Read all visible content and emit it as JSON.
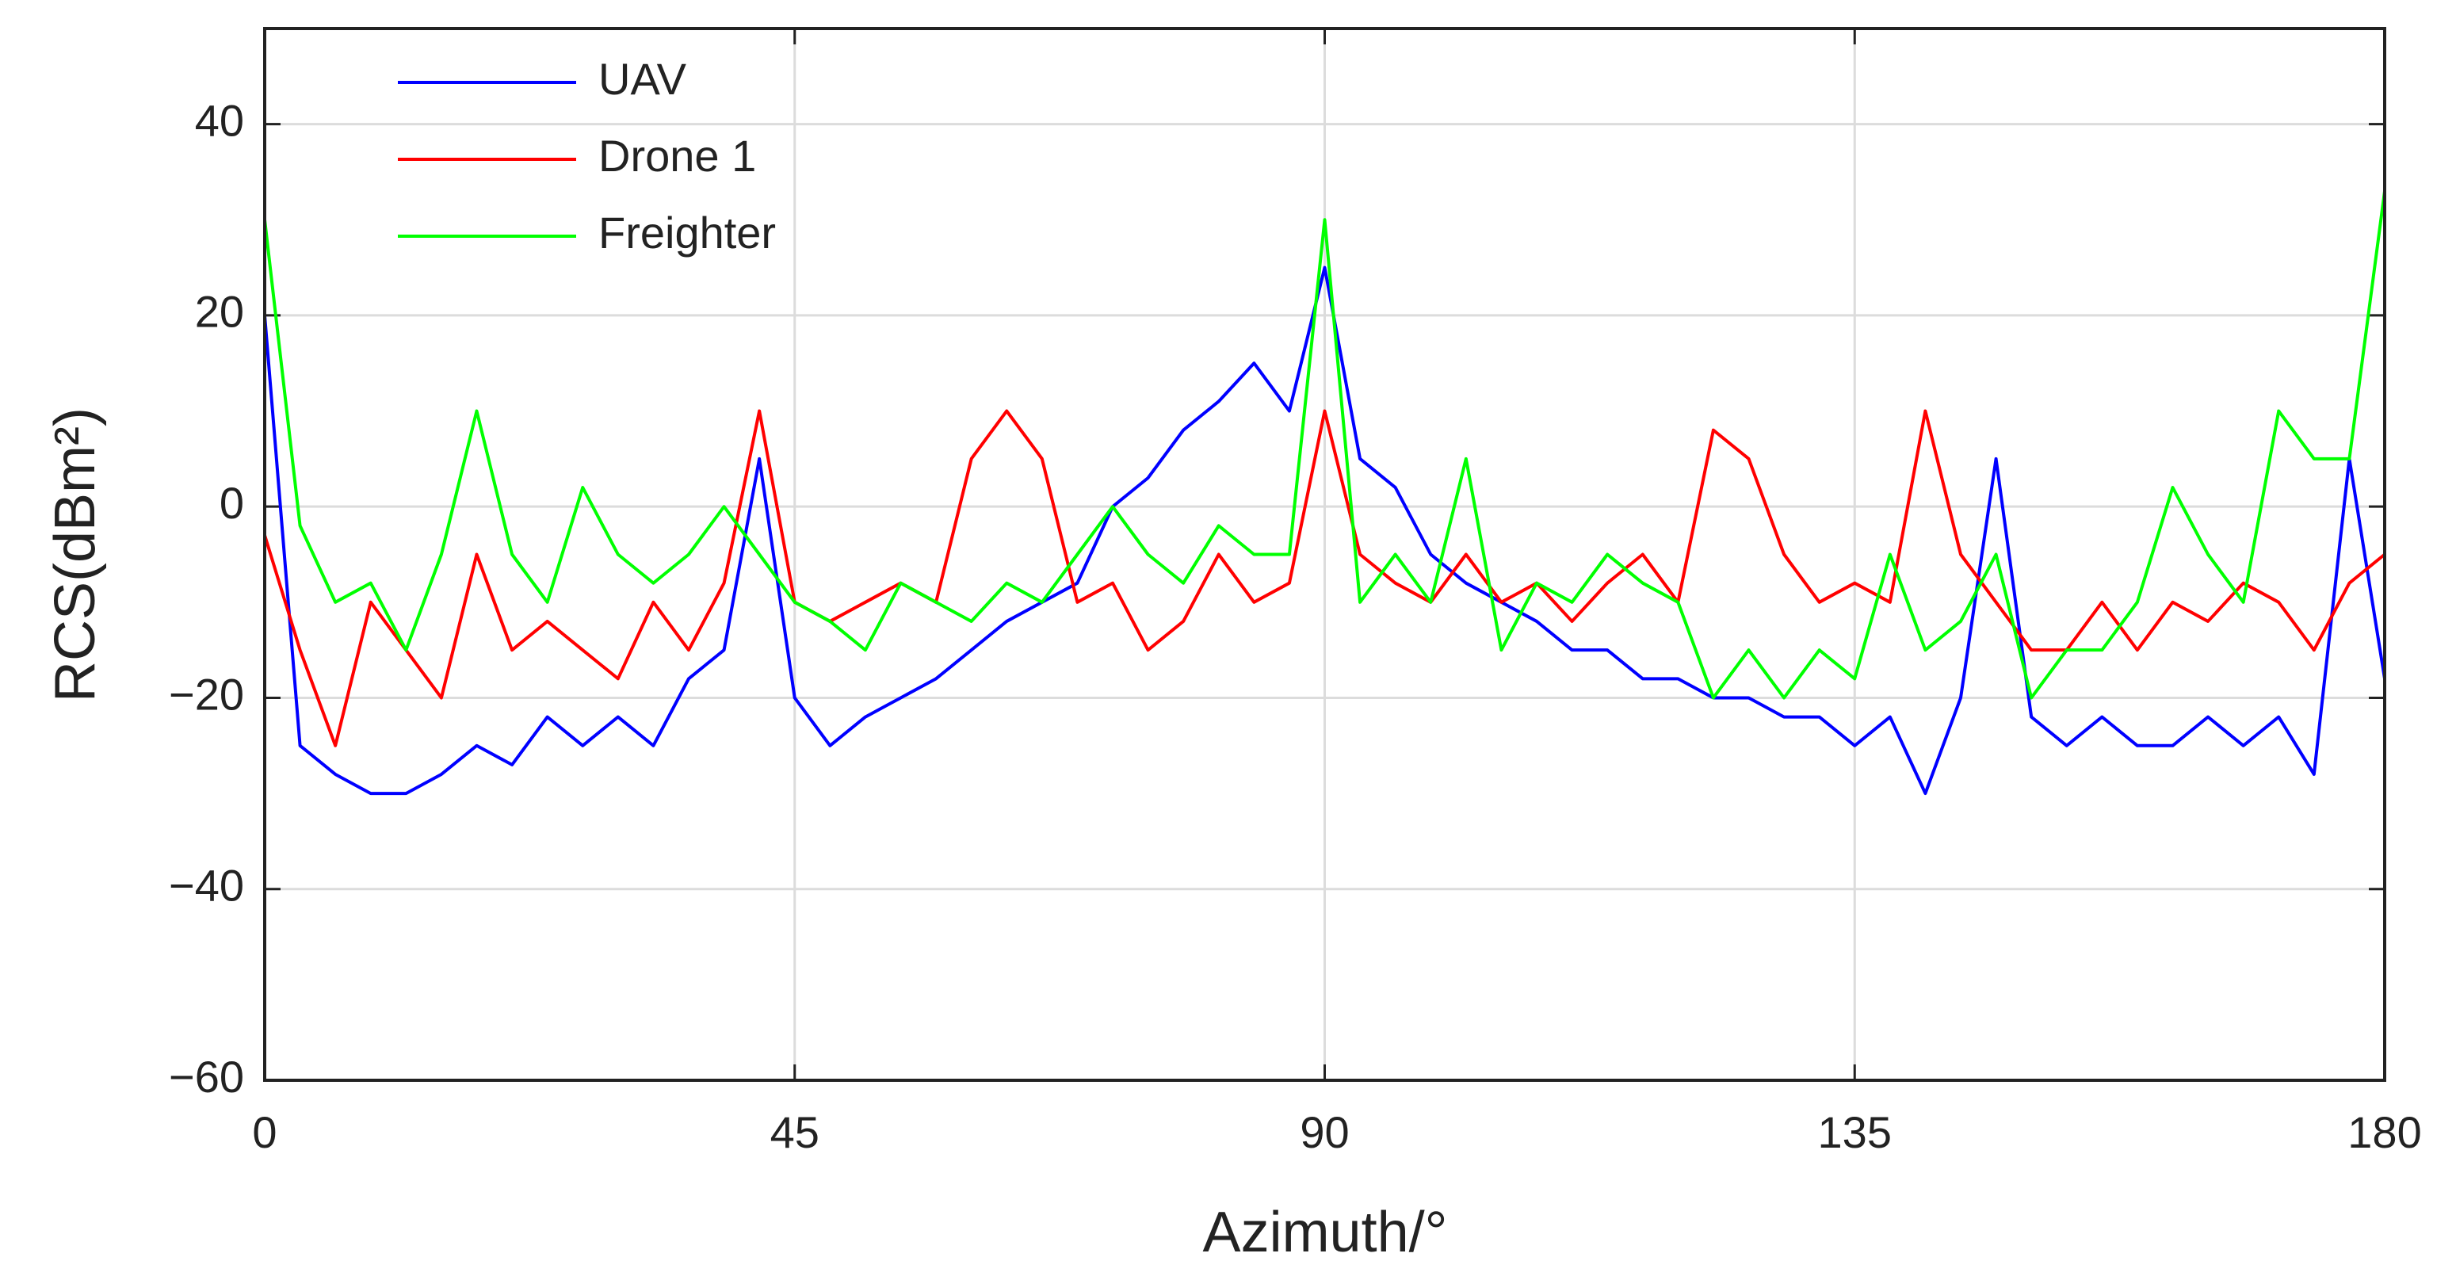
{
  "chart_data": {
    "type": "line",
    "xlabel": "Azimuth/°",
    "ylabel": "RCS(dBm²)",
    "x": [
      0,
      3,
      6,
      9,
      12,
      15,
      18,
      21,
      24,
      27,
      30,
      33,
      36,
      39,
      42,
      45,
      48,
      51,
      54,
      57,
      60,
      63,
      66,
      69,
      72,
      75,
      78,
      81,
      84,
      87,
      90,
      93,
      96,
      99,
      102,
      105,
      108,
      111,
      114,
      117,
      120,
      123,
      126,
      129,
      132,
      135,
      138,
      141,
      144,
      147,
      150,
      153,
      156,
      159,
      162,
      165,
      168,
      171,
      174,
      177,
      180
    ],
    "series": [
      {
        "name": "UAV",
        "color": "#0000ff",
        "values": [
          20,
          -25,
          -28,
          -30,
          -30,
          -28,
          -25,
          -27,
          -22,
          -25,
          -22,
          -25,
          -18,
          -15,
          5,
          -20,
          -25,
          -22,
          -20,
          -18,
          -15,
          -12,
          -10,
          -8,
          0,
          3,
          8,
          11,
          15,
          10,
          25,
          5,
          2,
          -5,
          -8,
          -10,
          -12,
          -15,
          -15,
          -18,
          -18,
          -20,
          -20,
          -22,
          -22,
          -25,
          -22,
          -30,
          -20,
          5,
          -22,
          -25,
          -22,
          -25,
          -25,
          -22,
          -25,
          -22,
          -28,
          5,
          -18
        ]
      },
      {
        "name": "Drone 1",
        "color": "#ff0000",
        "values": [
          -3,
          -15,
          -25,
          -10,
          -15,
          -20,
          -5,
          -15,
          -12,
          -15,
          -18,
          -10,
          -15,
          -8,
          10,
          -10,
          -12,
          -10,
          -8,
          -10,
          5,
          10,
          5,
          -10,
          -8,
          -15,
          -12,
          -5,
          -10,
          -8,
          10,
          -5,
          -8,
          -10,
          -5,
          -10,
          -8,
          -12,
          -8,
          -5,
          -10,
          8,
          5,
          -5,
          -10,
          -8,
          -10,
          10,
          -5,
          -10,
          -15,
          -15,
          -10,
          -15,
          -10,
          -12,
          -8,
          -10,
          -15,
          -8,
          -5
        ]
      },
      {
        "name": "Freighter",
        "color": "#00ff00",
        "values": [
          30,
          -2,
          -10,
          -8,
          -15,
          -5,
          10,
          -5,
          -10,
          2,
          -5,
          -8,
          -5,
          0,
          -5,
          -10,
          -12,
          -15,
          -8,
          -10,
          -12,
          -8,
          -10,
          -5,
          0,
          -5,
          -8,
          -2,
          -5,
          -5,
          30,
          -10,
          -5,
          -10,
          5,
          -15,
          -8,
          -10,
          -5,
          -8,
          -10,
          -20,
          -15,
          -20,
          -15,
          -18,
          -5,
          -15,
          -12,
          -5,
          -20,
          -15,
          -15,
          -10,
          2,
          -5,
          -10,
          10,
          5,
          5,
          33
        ]
      }
    ],
    "xlim": [
      0,
      180
    ],
    "xticks": [
      0,
      45,
      90,
      135,
      180
    ],
    "ylim": [
      -60,
      50
    ],
    "yticks": [
      {
        "value": -60,
        "label": "−60"
      },
      {
        "value": -40,
        "label": "−40"
      },
      {
        "value": -20,
        "label": "−20"
      },
      0,
      20,
      40
    ],
    "grid": true,
    "legend": "upper left"
  }
}
